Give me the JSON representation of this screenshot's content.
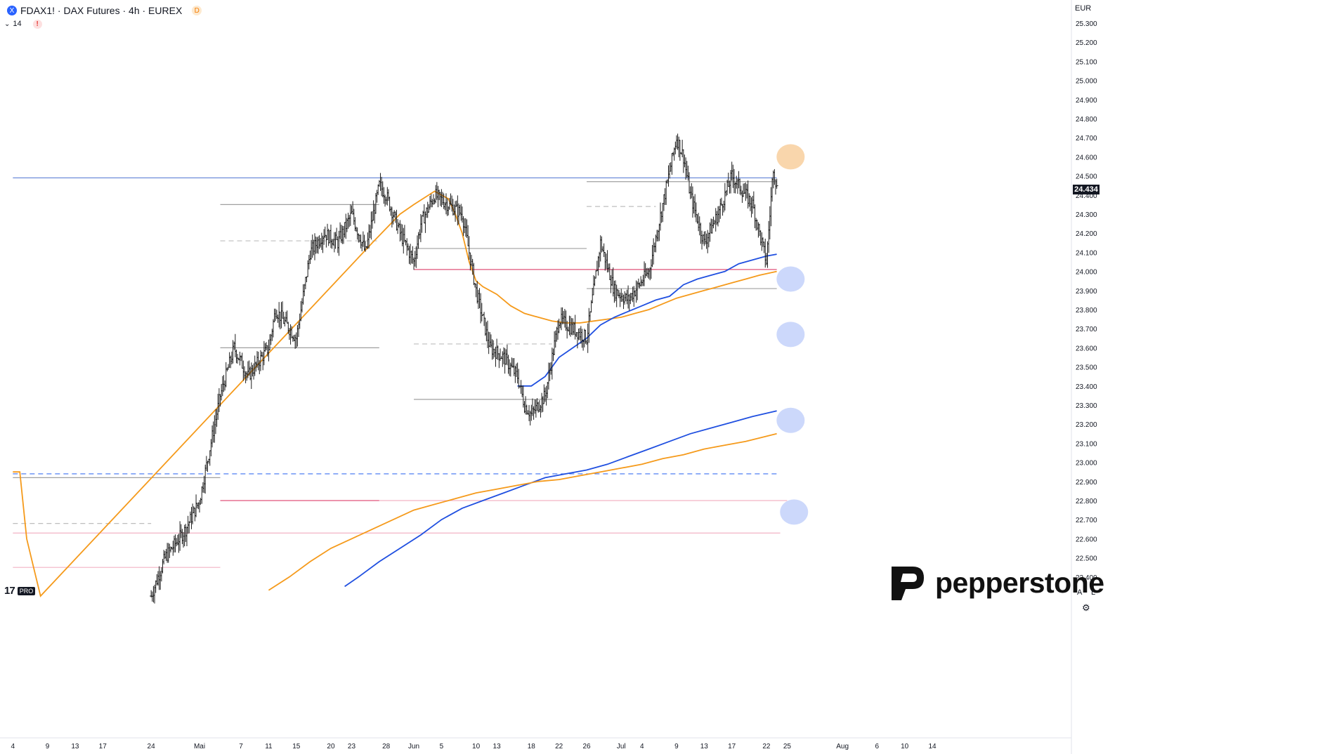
{
  "header": {
    "symbol_icon": "X",
    "title": "FDAX1! · DAX Futures · 4h · EUREX",
    "d_badge": "D",
    "indicator_count": "14",
    "warning_glyph": "!",
    "chevron_glyph": "⌄"
  },
  "currency": "EUR",
  "last_price_label": "24.434",
  "watermark": {
    "tv_mark": "17",
    "pro": "PRO",
    "brand": "pepperstone"
  },
  "scale_buttons": {
    "auto": "A",
    "log": "L",
    "settings_glyph": "⚙"
  },
  "chart_data": {
    "type": "candlestick",
    "symbol": "FDAX1!",
    "interval": "4h",
    "currency": "EUR",
    "last_price": 24434,
    "ylim": [
      22300,
      25300
    ],
    "y_ticks": [
      {
        "label": "25.300",
        "value": 25300
      },
      {
        "label": "25.200",
        "value": 25200
      },
      {
        "label": "25.100",
        "value": 25100
      },
      {
        "label": "25.000",
        "value": 25000
      },
      {
        "label": "24.900",
        "value": 24900
      },
      {
        "label": "24.800",
        "value": 24800
      },
      {
        "label": "24.700",
        "value": 24700
      },
      {
        "label": "24.600",
        "value": 24600
      },
      {
        "label": "24.500",
        "value": 24500
      },
      {
        "label": "24.400",
        "value": 24400
      },
      {
        "label": "24.300",
        "value": 24300
      },
      {
        "label": "24.200",
        "value": 24200
      },
      {
        "label": "24.100",
        "value": 24100
      },
      {
        "label": "24.000",
        "value": 24000
      },
      {
        "label": "23.900",
        "value": 23900
      },
      {
        "label": "23.800",
        "value": 23800
      },
      {
        "label": "23.700",
        "value": 23700
      },
      {
        "label": "23.600",
        "value": 23600
      },
      {
        "label": "23.500",
        "value": 23500
      },
      {
        "label": "23.400",
        "value": 23400
      },
      {
        "label": "23.300",
        "value": 23300
      },
      {
        "label": "23.200",
        "value": 23200
      },
      {
        "label": "23.100",
        "value": 23100
      },
      {
        "label": "23.000",
        "value": 23000
      },
      {
        "label": "22.900",
        "value": 22900
      },
      {
        "label": "22.800",
        "value": 22800
      },
      {
        "label": "22.700",
        "value": 22700
      },
      {
        "label": "22.600",
        "value": 22600
      },
      {
        "label": "22.500",
        "value": 22500
      },
      {
        "label": "22.400",
        "value": 22400
      }
    ],
    "x_ticks": [
      "4",
      "9",
      "13",
      "17",
      "24",
      "Mai",
      "7",
      "11",
      "15",
      "20",
      "23",
      "28",
      "Jun",
      "5",
      "10",
      "13",
      "18",
      "22",
      "26",
      "Jul",
      "4",
      "9",
      "13",
      "17",
      "22",
      "25",
      "Aug",
      "6",
      "10",
      "14"
    ],
    "x_tick_days": [
      -23,
      -18,
      -14,
      -10,
      -3,
      4,
      10,
      14,
      18,
      23,
      26,
      31,
      35,
      39,
      44,
      47,
      52,
      56,
      60,
      65,
      68,
      73,
      77,
      81,
      86,
      89,
      97,
      102,
      106,
      110
    ],
    "last_bar_day": 87.5,
    "price_path": [
      [
        -3,
        22300
      ],
      [
        -1,
        22500
      ],
      [
        2,
        22650
      ],
      [
        4,
        22800
      ],
      [
        7,
        23350
      ],
      [
        9,
        23600
      ],
      [
        11,
        23450
      ],
      [
        14,
        23600
      ],
      [
        15,
        23800
      ],
      [
        18,
        23650
      ],
      [
        20,
        24100
      ],
      [
        22,
        24200
      ],
      [
        24,
        24150
      ],
      [
        26,
        24300
      ],
      [
        28,
        24100
      ],
      [
        30,
        24450
      ],
      [
        31,
        24400
      ],
      [
        33,
        24200
      ],
      [
        35,
        24050
      ],
      [
        36,
        24250
      ],
      [
        38,
        24400
      ],
      [
        40,
        24350
      ],
      [
        42,
        24300
      ],
      [
        44,
        23900
      ],
      [
        46,
        23600
      ],
      [
        48,
        23550
      ],
      [
        50,
        23450
      ],
      [
        51,
        23300
      ],
      [
        52,
        23250
      ],
      [
        54,
        23350
      ],
      [
        56,
        23750
      ],
      [
        58,
        23700
      ],
      [
        60,
        23650
      ],
      [
        62,
        24150
      ],
      [
        64,
        23900
      ],
      [
        66,
        23850
      ],
      [
        67,
        23900
      ],
      [
        69,
        24000
      ],
      [
        71,
        24350
      ],
      [
        73,
        24700
      ],
      [
        74,
        24600
      ],
      [
        75,
        24400
      ],
      [
        77,
        24150
      ],
      [
        79,
        24300
      ],
      [
        81,
        24500
      ],
      [
        82,
        24450
      ],
      [
        84,
        24350
      ],
      [
        86,
        24050
      ],
      [
        87,
        24550
      ],
      [
        87.5,
        24434
      ]
    ],
    "indicators": [
      {
        "name": "",
        "color": "#f59a1b",
        "points": [
          [
            -23,
            22950
          ],
          [
            -22,
            22950
          ],
          [
            -21,
            22600
          ],
          [
            -20,
            22450
          ],
          [
            -19,
            22300
          ],
          [
            29,
            24150
          ],
          [
            33,
            24300
          ],
          [
            35,
            24350
          ],
          [
            38,
            24420
          ],
          [
            40,
            24380
          ],
          [
            41,
            24300
          ],
          [
            42,
            24200
          ],
          [
            43,
            24050
          ],
          [
            44,
            23950
          ],
          [
            45,
            23920
          ],
          [
            47,
            23880
          ],
          [
            49,
            23820
          ],
          [
            51,
            23780
          ],
          [
            53,
            23760
          ],
          [
            55,
            23740
          ],
          [
            57,
            23730
          ],
          [
            59,
            23730
          ],
          [
            61,
            23740
          ],
          [
            63,
            23750
          ],
          [
            65,
            23760
          ],
          [
            67,
            23780
          ],
          [
            69,
            23800
          ],
          [
            71,
            23830
          ],
          [
            73,
            23860
          ],
          [
            75,
            23880
          ],
          [
            77,
            23900
          ],
          [
            79,
            23920
          ],
          [
            81,
            23940
          ],
          [
            83,
            23960
          ],
          [
            85,
            23980
          ],
          [
            87.5,
            24000
          ]
        ]
      },
      {
        "name": "",
        "color": "#1f4fe0",
        "points": [
          [
            50,
            23400
          ],
          [
            52,
            23400
          ],
          [
            54,
            23450
          ],
          [
            56,
            23550
          ],
          [
            58,
            23600
          ],
          [
            60,
            23650
          ],
          [
            62,
            23720
          ],
          [
            64,
            23760
          ],
          [
            66,
            23790
          ],
          [
            68,
            23820
          ],
          [
            70,
            23850
          ],
          [
            72,
            23870
          ],
          [
            74,
            23930
          ],
          [
            76,
            23960
          ],
          [
            78,
            23980
          ],
          [
            80,
            24000
          ],
          [
            82,
            24040
          ],
          [
            84,
            24060
          ],
          [
            86,
            24080
          ],
          [
            87.5,
            24090
          ]
        ]
      },
      {
        "name": "",
        "color": "#1f4fe0",
        "points": [
          [
            25,
            22350
          ],
          [
            27,
            22400
          ],
          [
            30,
            22480
          ],
          [
            33,
            22550
          ],
          [
            36,
            22620
          ],
          [
            39,
            22700
          ],
          [
            42,
            22760
          ],
          [
            45,
            22800
          ],
          [
            48,
            22840
          ],
          [
            51,
            22880
          ],
          [
            54,
            22920
          ],
          [
            57,
            22940
          ],
          [
            60,
            22960
          ],
          [
            63,
            22990
          ],
          [
            66,
            23030
          ],
          [
            69,
            23070
          ],
          [
            72,
            23110
          ],
          [
            75,
            23150
          ],
          [
            78,
            23180
          ],
          [
            81,
            23210
          ],
          [
            84,
            23240
          ],
          [
            87.5,
            23270
          ]
        ]
      },
      {
        "name": "",
        "color": "#f59a1b",
        "points": [
          [
            14,
            22330
          ],
          [
            17,
            22400
          ],
          [
            20,
            22480
          ],
          [
            23,
            22550
          ],
          [
            26,
            22600
          ],
          [
            29,
            22650
          ],
          [
            32,
            22700
          ],
          [
            35,
            22750
          ],
          [
            38,
            22780
          ],
          [
            41,
            22810
          ],
          [
            44,
            22840
          ],
          [
            47,
            22860
          ],
          [
            50,
            22880
          ],
          [
            53,
            22900
          ],
          [
            56,
            22910
          ],
          [
            59,
            22930
          ],
          [
            62,
            22950
          ],
          [
            65,
            22970
          ],
          [
            68,
            22990
          ],
          [
            71,
            23020
          ],
          [
            74,
            23040
          ],
          [
            77,
            23070
          ],
          [
            80,
            23090
          ],
          [
            83,
            23110
          ],
          [
            87.5,
            23150
          ]
        ]
      }
    ],
    "levels": [
      {
        "value": 24490,
        "from_day": -23,
        "to_day": 87.5,
        "color": "#5b7fd6",
        "style": "solid"
      },
      {
        "value": 24470,
        "from_day": 60,
        "to_day": 87.5,
        "color": "#a0a0a0",
        "style": "solid"
      },
      {
        "value": 24350,
        "from_day": 7,
        "to_day": 30,
        "color": "#a0a0a0",
        "style": "solid"
      },
      {
        "value": 24340,
        "from_day": 60,
        "to_day": 70,
        "color": "#bdbdbd",
        "style": "dashed"
      },
      {
        "value": 24160,
        "from_day": 7,
        "to_day": 30,
        "color": "#bdbdbd",
        "style": "dashed"
      },
      {
        "value": 24120,
        "from_day": 35,
        "to_day": 60,
        "color": "#a0a0a0",
        "style": "solid"
      },
      {
        "value": 24010,
        "from_day": 35,
        "to_day": 87.5,
        "color": "#e0537a",
        "style": "solid"
      },
      {
        "value": 23910,
        "from_day": 60,
        "to_day": 87.5,
        "color": "#a0a0a0",
        "style": "solid"
      },
      {
        "value": 23620,
        "from_day": 35,
        "to_day": 55,
        "color": "#bdbdbd",
        "style": "dashed"
      },
      {
        "value": 23600,
        "from_day": 7,
        "to_day": 30,
        "color": "#a0a0a0",
        "style": "solid"
      },
      {
        "value": 23330,
        "from_day": 35,
        "to_day": 55,
        "color": "#a0a0a0",
        "style": "solid"
      },
      {
        "value": 22940,
        "from_day": -23,
        "to_day": 87.5,
        "color": "#3b6ff0",
        "style": "dashed"
      },
      {
        "value": 22920,
        "from_day": -23,
        "to_day": 7,
        "color": "#a0a0a0",
        "style": "solid"
      },
      {
        "value": 22800,
        "from_day": 7,
        "to_day": 30,
        "color": "#e0537a",
        "style": "solid"
      },
      {
        "value": 22800,
        "from_day": 30,
        "to_day": 89,
        "color": "#f2b3c4",
        "style": "solid"
      },
      {
        "value": 22680,
        "from_day": -23,
        "to_day": -3,
        "color": "#bdbdbd",
        "style": "dashed"
      },
      {
        "value": 22630,
        "from_day": -23,
        "to_day": 88,
        "color": "#f2b3c4",
        "style": "solid"
      },
      {
        "value": 22450,
        "from_day": -23,
        "to_day": 7,
        "color": "#f2b3c4",
        "style": "solid"
      }
    ],
    "markers": [
      {
        "color": "#f9d4a8",
        "value": 24600,
        "day": 89.5
      },
      {
        "color": "#c9d6fb",
        "value": 23960,
        "day": 89.5
      },
      {
        "color": "#c9d6fb",
        "value": 23670,
        "day": 89.5
      },
      {
        "color": "#c9d6fb",
        "value": 23220,
        "day": 89.5
      },
      {
        "color": "#c9d6fb",
        "value": 22740,
        "day": 90
      }
    ]
  }
}
